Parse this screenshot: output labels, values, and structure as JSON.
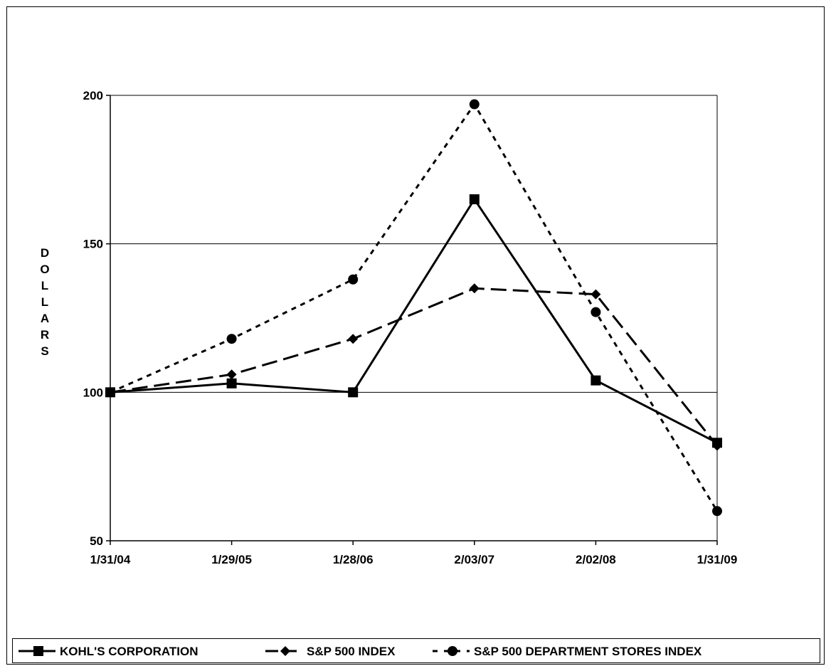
{
  "chart_data": {
    "type": "line",
    "title": "",
    "xlabel": "",
    "ylabel": "DOLLARS",
    "categories": [
      "1/31/04",
      "1/29/05",
      "1/28/06",
      "2/03/07",
      "2/02/08",
      "1/31/09"
    ],
    "ylim": [
      50,
      200
    ],
    "yticks": [
      50,
      100,
      150,
      200
    ],
    "grid": true,
    "legend_position": "bottom",
    "series": [
      {
        "name": "KOHL'S CORPORATION",
        "values": [
          100,
          103,
          100,
          165,
          104,
          83
        ],
        "line_style": "solid",
        "marker": "square",
        "color": "#000000"
      },
      {
        "name": "S&P 500 INDEX",
        "values": [
          100,
          106,
          118,
          135,
          133,
          82
        ],
        "line_style": "dashed",
        "marker": "diamond",
        "color": "#000000"
      },
      {
        "name": "S&P 500 DEPARTMENT STORES INDEX",
        "values": [
          100,
          118,
          138,
          197,
          127,
          60
        ],
        "line_style": "dotted",
        "marker": "circle",
        "color": "#000000"
      }
    ]
  }
}
